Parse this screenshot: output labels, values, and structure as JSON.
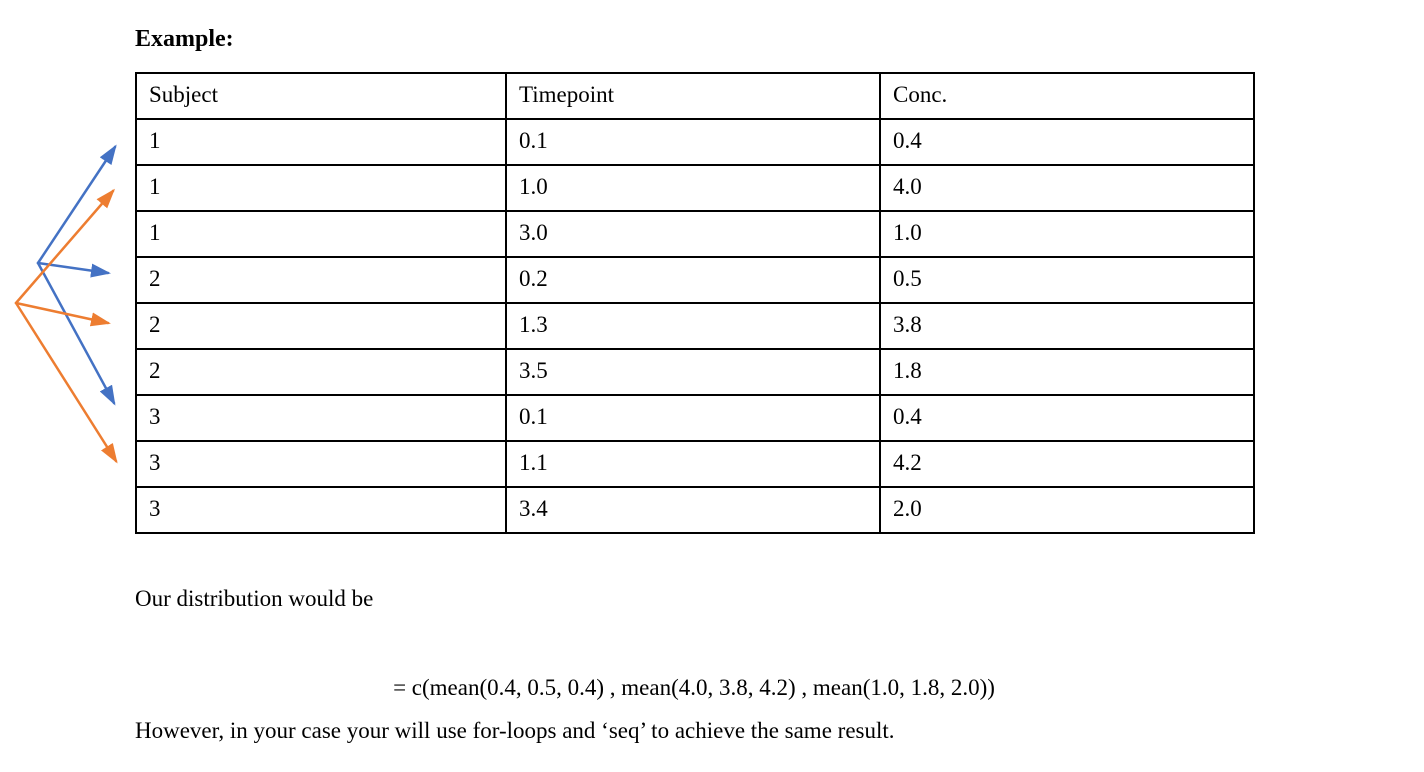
{
  "page": {
    "heading": "Example:",
    "distribution_line": "Our distribution would be",
    "formula": "= c(mean(0.4, 0.5, 0.4) , mean(4.0, 3.8, 4.2) , mean(1.0, 1.8, 2.0))",
    "note_line": "However, in your case your will use for-loops and ‘seq’ to achieve the same result."
  },
  "table": {
    "headers": [
      "Subject",
      "Timepoint",
      "Conc."
    ],
    "rows": [
      [
        "1",
        "0.1",
        "0.4"
      ],
      [
        "1",
        "1.0",
        "4.0"
      ],
      [
        "1",
        "3.0",
        "1.0"
      ],
      [
        "2",
        "0.2",
        "0.5"
      ],
      [
        "2",
        "1.3",
        "3.8"
      ],
      [
        "2",
        "3.5",
        "1.8"
      ],
      [
        "3",
        "0.1",
        "0.4"
      ],
      [
        "3",
        "1.1",
        "4.2"
      ],
      [
        "3",
        "3.4",
        "2.0"
      ]
    ]
  },
  "arrows": {
    "blue": {
      "color": "#4472C4",
      "target_rows": [
        1,
        4,
        7
      ],
      "target_conc_values": [
        "0.4",
        "0.5",
        "0.4"
      ]
    },
    "orange": {
      "color": "#ED7D31",
      "target_rows": [
        2,
        5,
        8
      ],
      "target_conc_values": [
        "4.0",
        "3.8",
        "4.2"
      ]
    }
  }
}
